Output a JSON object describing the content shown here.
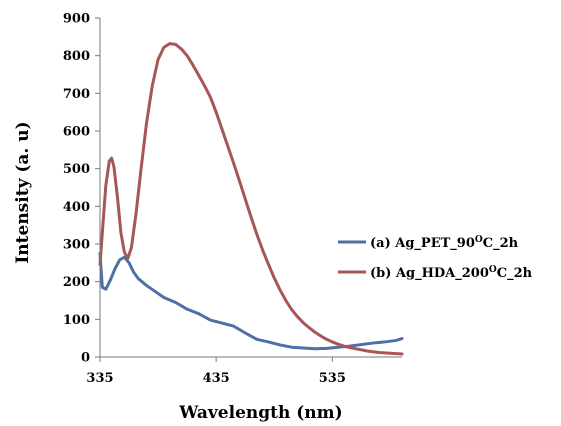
{
  "chart_data": {
    "type": "line",
    "title": "",
    "xlabel": "Wavelength (nm)",
    "ylabel": "Intensity (a. u)",
    "xlim": [
      335,
      595
    ],
    "ylim": [
      0,
      900
    ],
    "x_ticks": [
      "335",
      "435",
      "535"
    ],
    "y_ticks": [
      "0",
      "100",
      "200",
      "300",
      "400",
      "500",
      "600",
      "700",
      "800",
      "900"
    ],
    "grid": false,
    "legend_position": "right",
    "series": [
      {
        "legend": {
          "prefix": "(a) Ag_PET_90",
          "sup": "O",
          "suffix": "C_2h"
        },
        "color": "#4f6fa8",
        "points": [
          [
            335,
            275
          ],
          [
            337,
            185
          ],
          [
            340,
            180
          ],
          [
            344,
            205
          ],
          [
            348,
            235
          ],
          [
            352,
            258
          ],
          [
            356,
            265
          ],
          [
            360,
            250
          ],
          [
            364,
            225
          ],
          [
            368,
            208
          ],
          [
            375,
            190
          ],
          [
            382,
            175
          ],
          [
            390,
            158
          ],
          [
            400,
            145
          ],
          [
            410,
            127
          ],
          [
            420,
            115
          ],
          [
            430,
            98
          ],
          [
            440,
            90
          ],
          [
            450,
            82
          ],
          [
            460,
            64
          ],
          [
            470,
            47
          ],
          [
            480,
            40
          ],
          [
            490,
            32
          ],
          [
            500,
            26
          ],
          [
            510,
            24
          ],
          [
            520,
            22
          ],
          [
            530,
            23
          ],
          [
            540,
            26
          ],
          [
            550,
            29
          ],
          [
            560,
            33
          ],
          [
            570,
            37
          ],
          [
            580,
            40
          ],
          [
            590,
            44
          ],
          [
            595,
            49
          ]
        ]
      },
      {
        "legend": {
          "prefix": "(b) Ag_HDA_200",
          "sup": "O",
          "suffix": "C_2h"
        },
        "color": "#a85555",
        "points": [
          [
            335,
            245
          ],
          [
            337,
            330
          ],
          [
            340,
            455
          ],
          [
            343,
            520
          ],
          [
            345,
            528
          ],
          [
            347,
            505
          ],
          [
            350,
            425
          ],
          [
            353,
            330
          ],
          [
            356,
            278
          ],
          [
            359,
            262
          ],
          [
            362,
            290
          ],
          [
            366,
            380
          ],
          [
            370,
            490
          ],
          [
            375,
            620
          ],
          [
            380,
            720
          ],
          [
            385,
            790
          ],
          [
            390,
            822
          ],
          [
            395,
            832
          ],
          [
            400,
            830
          ],
          [
            405,
            818
          ],
          [
            410,
            800
          ],
          [
            415,
            775
          ],
          [
            420,
            748
          ],
          [
            425,
            720
          ],
          [
            430,
            690
          ],
          [
            435,
            650
          ],
          [
            440,
            605
          ],
          [
            445,
            560
          ],
          [
            450,
            515
          ],
          [
            455,
            468
          ],
          [
            460,
            420
          ],
          [
            465,
            372
          ],
          [
            470,
            326
          ],
          [
            475,
            284
          ],
          [
            480,
            246
          ],
          [
            485,
            210
          ],
          [
            490,
            178
          ],
          [
            495,
            150
          ],
          [
            500,
            126
          ],
          [
            505,
            107
          ],
          [
            510,
            91
          ],
          [
            515,
            78
          ],
          [
            520,
            66
          ],
          [
            525,
            56
          ],
          [
            530,
            47
          ],
          [
            535,
            40
          ],
          [
            540,
            34
          ],
          [
            545,
            29
          ],
          [
            550,
            25
          ],
          [
            555,
            22
          ],
          [
            560,
            19
          ],
          [
            565,
            16
          ],
          [
            570,
            14
          ],
          [
            575,
            12
          ],
          [
            580,
            11
          ],
          [
            585,
            10
          ],
          [
            590,
            9
          ],
          [
            595,
            8
          ]
        ]
      }
    ]
  }
}
